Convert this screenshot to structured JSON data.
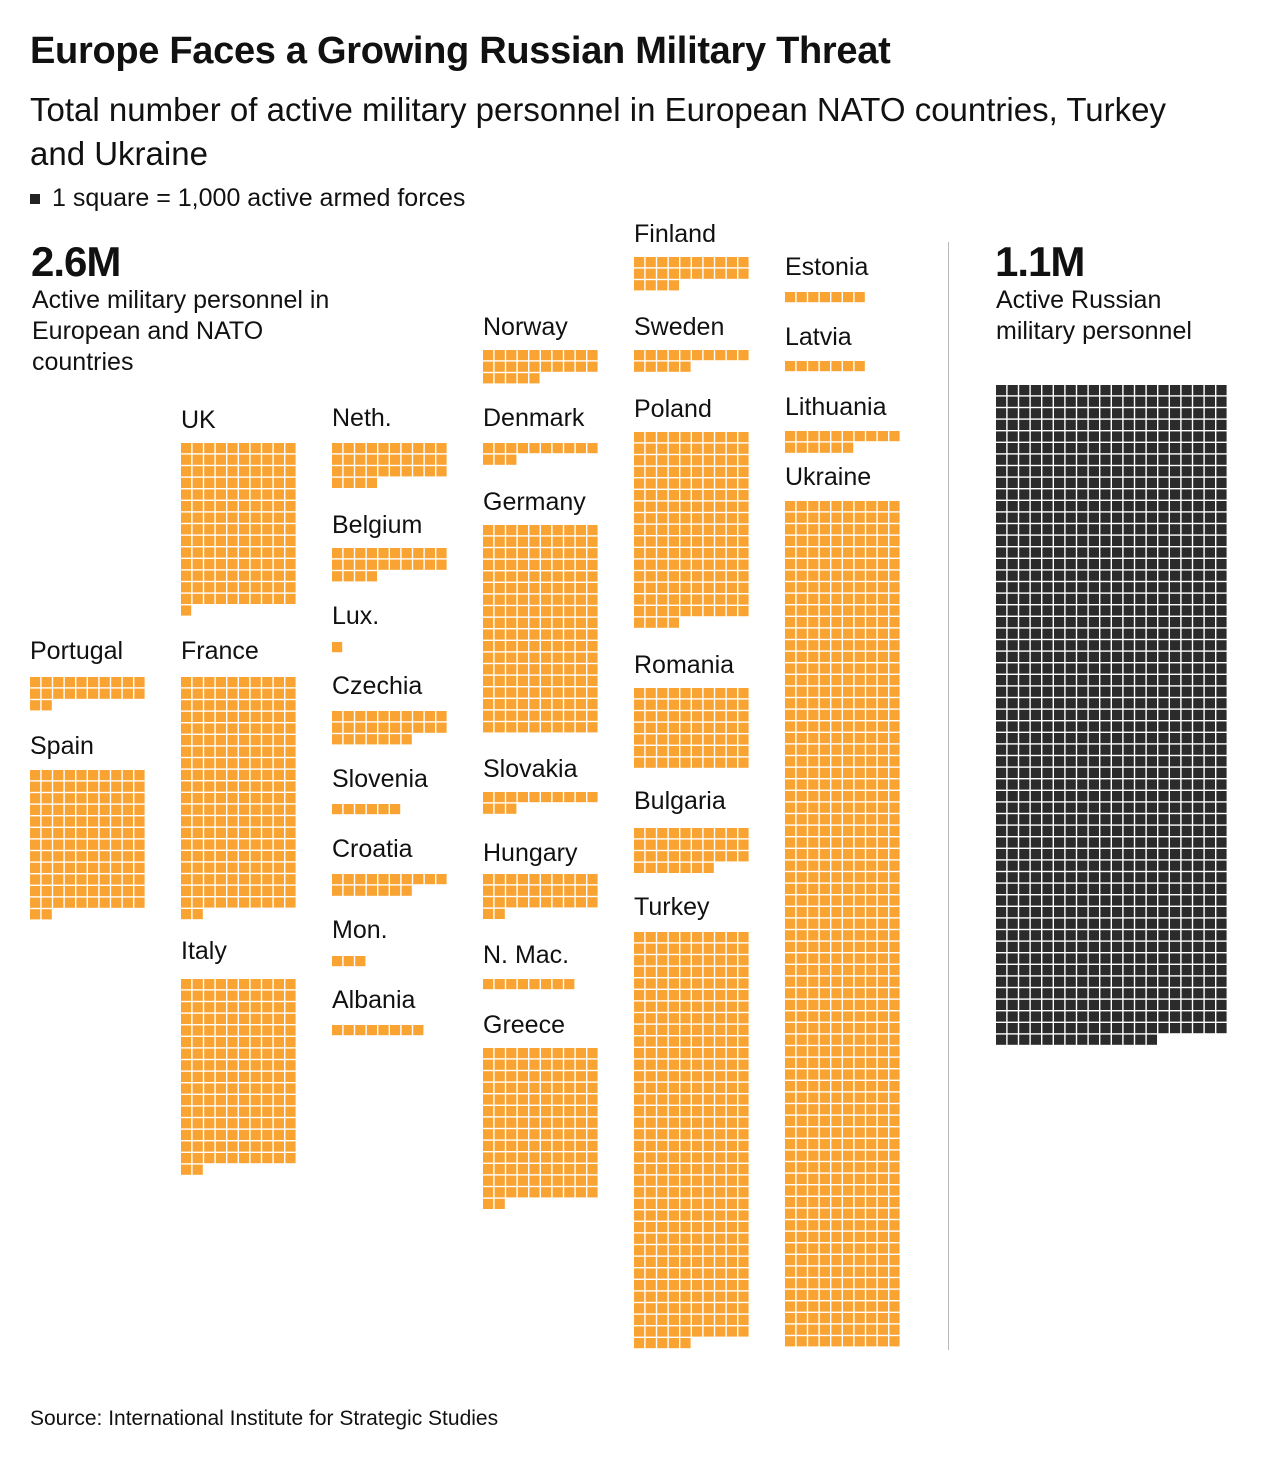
{
  "title": "Europe Faces a Growing Russian Military Threat",
  "subtitle": "Total number of active military personnel in European NATO countries, Turkey and Ukraine",
  "legend": "1 square = 1,000 active armed forces",
  "europe_total": {
    "value": "2.6M",
    "description": "Active military personnel in European and NATO countries"
  },
  "russia_total": {
    "value": "1.1M",
    "description": "Active Russian military personnel"
  },
  "source": "Source: International Institute for Strategic Studies",
  "colors": {
    "europe": "#F9A332",
    "russia": "#2B2B2B"
  },
  "chart_data": {
    "type": "waffle",
    "unit": "1 square = 1,000 active armed forces",
    "series": [
      {
        "name": "Portugal",
        "value": 22
      },
      {
        "name": "Spain",
        "value": 122
      },
      {
        "name": "UK",
        "value": 141
      },
      {
        "name": "France",
        "value": 202
      },
      {
        "name": "Italy",
        "value": 162
      },
      {
        "name": "Neth.",
        "value": 34
      },
      {
        "name": "Belgium",
        "value": 24
      },
      {
        "name": "Lux.",
        "value": 1
      },
      {
        "name": "Czechia",
        "value": 27
      },
      {
        "name": "Slovenia",
        "value": 6
      },
      {
        "name": "Croatia",
        "value": 17
      },
      {
        "name": "Mon.",
        "value": 3
      },
      {
        "name": "Albania",
        "value": 8
      },
      {
        "name": "Norway",
        "value": 25
      },
      {
        "name": "Denmark",
        "value": 13
      },
      {
        "name": "Germany",
        "value": 180
      },
      {
        "name": "Slovakia",
        "value": 13
      },
      {
        "name": "Hungary",
        "value": 32
      },
      {
        "name": "N. Mac.",
        "value": 8
      },
      {
        "name": "Greece",
        "value": 132
      },
      {
        "name": "Finland",
        "value": 24
      },
      {
        "name": "Sweden",
        "value": 15
      },
      {
        "name": "Poland",
        "value": 164
      },
      {
        "name": "Romania",
        "value": 70
      },
      {
        "name": "Bulgaria",
        "value": 37
      },
      {
        "name": "Turkey",
        "value": 355
      },
      {
        "name": "Estonia",
        "value": 7
      },
      {
        "name": "Latvia",
        "value": 7
      },
      {
        "name": "Lithuania",
        "value": 16
      },
      {
        "name": "Ukraine",
        "value": 730
      }
    ],
    "russia": {
      "value": 1134
    }
  }
}
